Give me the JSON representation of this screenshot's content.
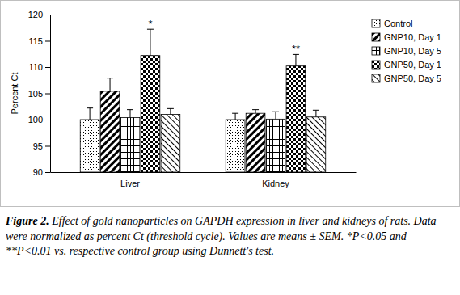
{
  "chart_data": {
    "type": "bar",
    "title": "Figure 2. Effect of gold nanoparticles on GAPDH expression in liver and kidneys of rats. Data were normalized as percent Ct (threshold cycle). Values are means ± SEM. *P<0.05 and **P<0.01 vs. respective control group using Dunnett's test.",
    "y_label": "Percent Ct",
    "categories": [
      "Liver",
      "Kidney"
    ],
    "series": [
      {
        "name": "Control",
        "color": "#000000",
        "values": [
          100,
          100
        ],
        "errors": [
          2.2,
          1.2
        ]
      },
      {
        "name": "GNP10, Day 1",
        "color": "#000000",
        "values": [
          105.4,
          101.2
        ],
        "errors": [
          2.5,
          0.7
        ]
      },
      {
        "name": "GNP10, Day 5",
        "color": "#000000",
        "values": [
          100.4,
          100.1
        ],
        "errors": [
          1.5,
          1.4
        ]
      },
      {
        "name": "GNP50, Day 1",
        "color": "#000000",
        "values": [
          112.2,
          110.2
        ],
        "errors": [
          5,
          2.2
        ]
      },
      {
        "name": "GNP50, Day 5",
        "color": "#000000",
        "values": [
          101,
          100.5
        ],
        "errors": [
          1.1,
          1.3
        ]
      }
    ],
    "annotations": [
      {
        "text": "*",
        "category": 0,
        "series": 3
      },
      {
        "text": "**",
        "category": 1,
        "series": 3
      }
    ],
    "ylim": [
      90,
      120
    ],
    "yticks": [
      90,
      95,
      100,
      105,
      110,
      115,
      120
    ],
    "grid": false,
    "legend": "right"
  }
}
